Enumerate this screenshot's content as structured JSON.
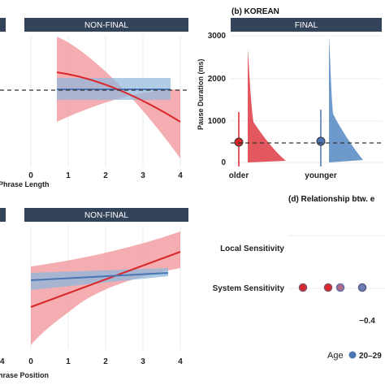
{
  "panel_b_title": "(b) KOREAN",
  "panel_d_title": "(d) Relationship btw. e",
  "top_strip": {
    "left": "NON-FINAL",
    "right": "FINAL"
  },
  "bottom_strip": {
    "left": "NON-FINAL"
  },
  "top_left_xlabel": "Phrase Length",
  "bottom_left_xlabel": "hrase Position",
  "right_ylabel": "Pause Duration (ms)",
  "legend": {
    "title": "Age",
    "first_label": "20–29"
  },
  "colors": {
    "red": "#d9262b",
    "red_fill": "#f2a0a3",
    "blue": "#4a76b4",
    "blue_fill": "#8fb7dc",
    "strip": "#33435a"
  },
  "chart_data": [
    {
      "type": "line",
      "panel": "top-middle",
      "strip": "NON-FINAL",
      "xlabel": "Phrase Length",
      "xlim": [
        0,
        4
      ],
      "xticks": [
        "0",
        "1",
        "2",
        "3",
        "4"
      ],
      "series": [
        {
          "color": "red",
          "x": [
            0.75,
            4.0
          ],
          "fit": [
            0.78,
            0.25
          ],
          "ci_upper": [
            0.95,
            0.6
          ],
          "ci_lower": [
            0.5,
            -0.35
          ]
        },
        {
          "color": "blue",
          "x": [
            0.75,
            3.75
          ],
          "fit": [
            0.55,
            0.55
          ],
          "ci_upper": [
            0.68,
            0.68
          ],
          "ci_lower": [
            0.42,
            0.42
          ]
        }
      ],
      "reference_line": "dashed"
    },
    {
      "type": "violin",
      "panel": "top-right",
      "strip": "FINAL",
      "ylabel": "Pause Duration (ms)",
      "ylim": [
        0,
        3000
      ],
      "yticks": [
        0,
        1000,
        2000,
        3000
      ],
      "categories": [
        "older",
        "younger"
      ],
      "means": [
        450,
        470
      ],
      "ci": [
        [
          80,
          1180
        ],
        [
          200,
          1230
        ]
      ],
      "reference_line": 450
    },
    {
      "type": "line",
      "panel": "bottom-middle",
      "strip": "NON-FINAL",
      "xlim": [
        0,
        4
      ],
      "xticks": [
        "0",
        "1",
        "2",
        "3",
        "4"
      ],
      "series": [
        {
          "color": "red",
          "x": [
            0.0,
            4.0
          ],
          "fit": [
            0.2,
            0.75
          ],
          "ci_upper": [
            0.58,
            0.98
          ],
          "ci_lower": [
            -0.2,
            0.5
          ]
        },
        {
          "color": "blue",
          "x": [
            0.0,
            3.6
          ],
          "fit": [
            0.4,
            0.5
          ],
          "ci_upper": [
            0.52,
            0.55
          ],
          "ci_lower": [
            0.28,
            0.44
          ]
        }
      ]
    },
    {
      "type": "scatter",
      "panel": "bottom-right",
      "title": "(d) Relationship btw. e",
      "categories": [
        "Local Sensitivity",
        "System Sensitivity"
      ],
      "xtick_label": "−0.4",
      "points": [
        {
          "category": "System Sensitivity",
          "color": "red"
        },
        {
          "category": "System Sensitivity",
          "color": "red"
        },
        {
          "category": "System Sensitivity",
          "color": "mixed"
        },
        {
          "category": "System Sensitivity",
          "color": "blue"
        }
      ]
    }
  ]
}
